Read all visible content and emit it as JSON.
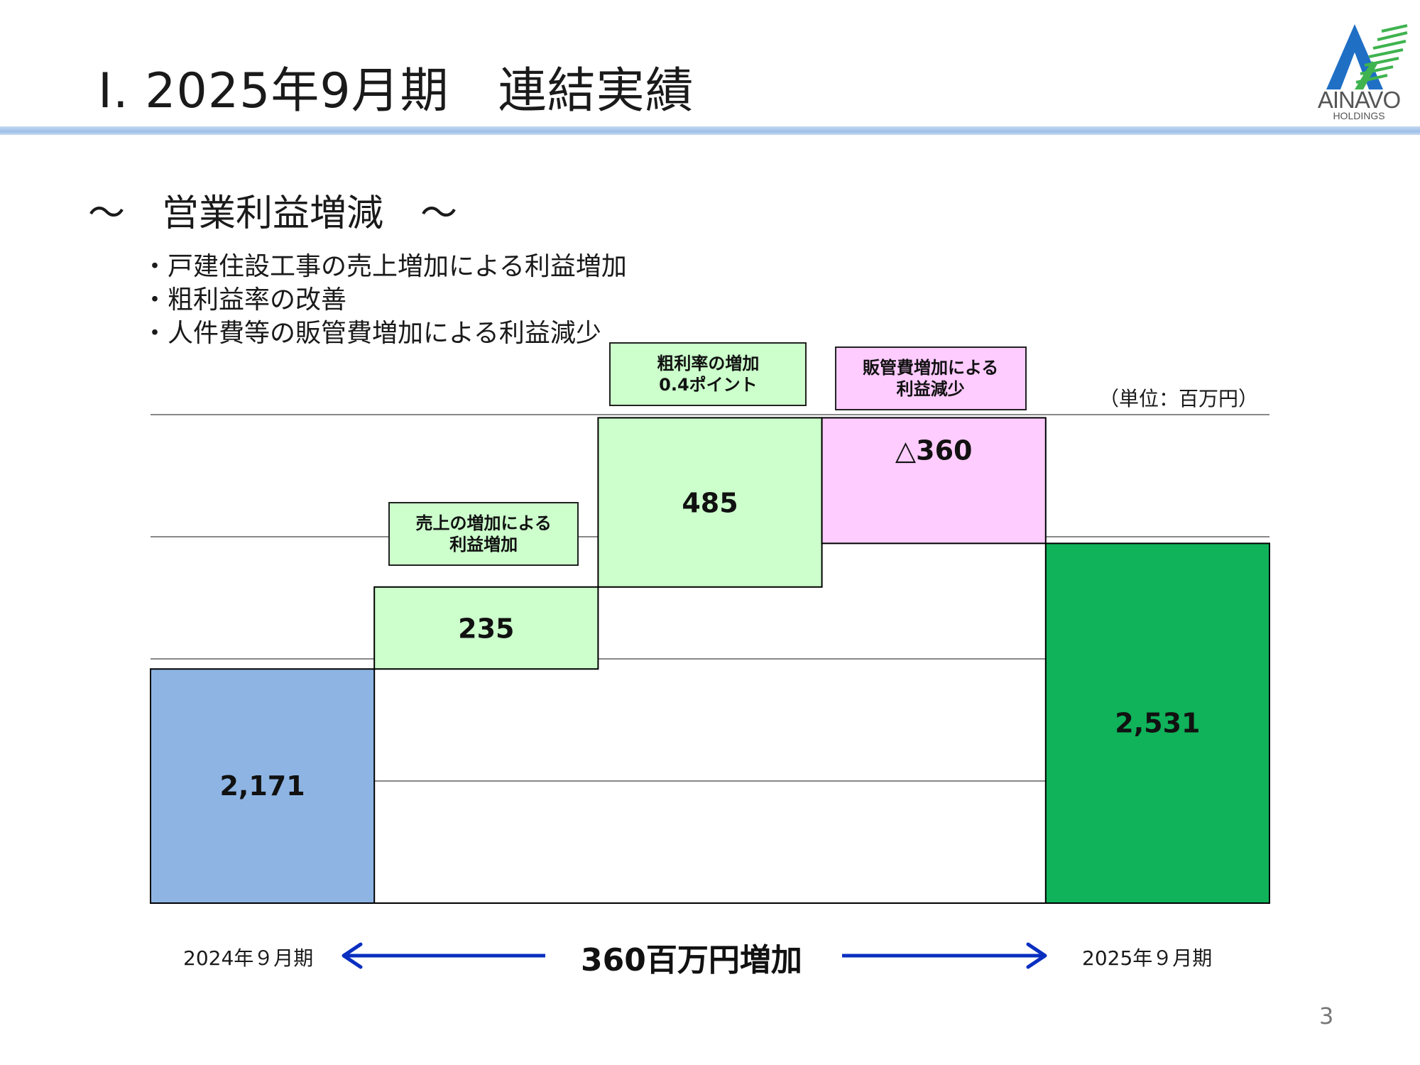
{
  "header": {
    "title": "Ⅰ. 2025年9月期　連結実績",
    "logo_main": "AINAVO",
    "logo_sub": "HOLDINGS"
  },
  "section_heading": "～　営業利益増減　～",
  "bullets": [
    "・戸建住設工事の売上増加による利益増加",
    "・粗利益率の改善",
    "・人件費等の販管費増加による利益減少"
  ],
  "chart_data": {
    "type": "bar",
    "subtype": "waterfall",
    "unit": "（単位：百万円）",
    "ylim": [
      1500,
      2900
    ],
    "grid": true,
    "gridlines": [
      1500,
      1850,
      2200,
      2550,
      2900
    ],
    "steps": [
      {
        "kind": "total",
        "value": 2171,
        "label": "2,171",
        "color": "#8eb4e3"
      },
      {
        "kind": "increase",
        "value": 235,
        "label": "235",
        "color": "#ccffcc"
      },
      {
        "kind": "increase",
        "value": 485,
        "label": "485",
        "color": "#ccffcc"
      },
      {
        "kind": "decrease",
        "value": -360,
        "label": "△360",
        "color": "#ffccff"
      },
      {
        "kind": "total",
        "value": 2531,
        "label": "2,531",
        "color": "#10b25a"
      }
    ],
    "annotations": [
      {
        "step": 1,
        "text": [
          "売上の増加による",
          "利益増加"
        ],
        "color": "#ccffcc"
      },
      {
        "step": 2,
        "text": [
          "粗利率の増加",
          "0.4ポイント"
        ],
        "color": "#ccffcc"
      },
      {
        "step": 3,
        "text": [
          "販管費増加による",
          "利益減少"
        ],
        "color": "#ffccff"
      }
    ],
    "start_period": "2024年９月期",
    "end_period": "2025年９月期",
    "change_label": "360百万円増加"
  },
  "page_number": "3",
  "colors": {
    "arrow": "#0a2fc0",
    "axis": "#000000",
    "grid": "#888888"
  }
}
